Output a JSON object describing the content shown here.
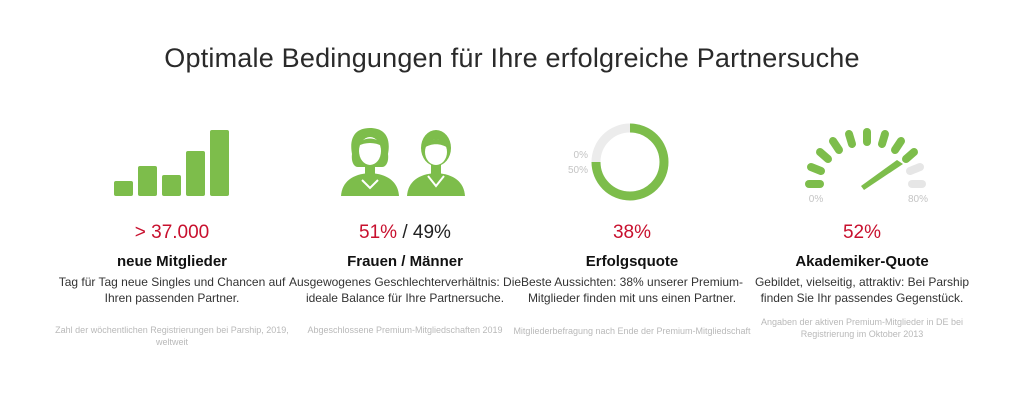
{
  "headline": "Optimale Bedingungen für Ihre erfolgreiche Partnersuche",
  "colors": {
    "accent": "#7dbd4b",
    "stat_red": "#c8102e",
    "muted": "#e6e6e6"
  },
  "features": [
    {
      "icon": "bar-chart-icon",
      "stat_prefix": "",
      "stat_red": "> 37.000",
      "stat_suffix": "",
      "title": "neue Mitglieder",
      "description": "Tag für Tag neue Singles und Chancen auf Ihren passenden Partner.",
      "source": "Zahl der wöchentlichen Registrierungen bei Parship, 2019, weltweit"
    },
    {
      "icon": "woman-man-icon",
      "stat_prefix": "",
      "stat_red": "51%",
      "stat_suffix": " / 49%",
      "title": "Frauen / Männer",
      "description": "Ausgewogenes Geschlechterverhältnis: Die ideale Balance für Ihre Partnersuche.",
      "source": "Abgeschlossene Premium-Mitgliedschaften 2019"
    },
    {
      "icon": "donut-gauge-icon",
      "gauge_label_0": "0%",
      "gauge_label_50": "50%",
      "stat_prefix": "",
      "stat_red": "38%",
      "stat_suffix": "",
      "title": "Erfolgsquote",
      "description": "Beste Aussichten: 38% unserer Premium-Mitglieder finden mit uns einen Partner.",
      "source": "Mitgliederbefragung nach Ende der Premium-Mitgliedschaft"
    },
    {
      "icon": "speedometer-icon",
      "gauge_label_min": "0%",
      "gauge_label_max": "80%",
      "stat_prefix": "",
      "stat_red": "52%",
      "stat_suffix": "",
      "title": "Akademiker-Quote",
      "description": "Gebildet, vielseitig, attraktiv: Bei Parship finden Sie Ihr passendes Gegenstück.",
      "source": "Angaben der aktiven Premium-Mitglieder in DE bei Registrierung im Oktober 2013"
    }
  ]
}
